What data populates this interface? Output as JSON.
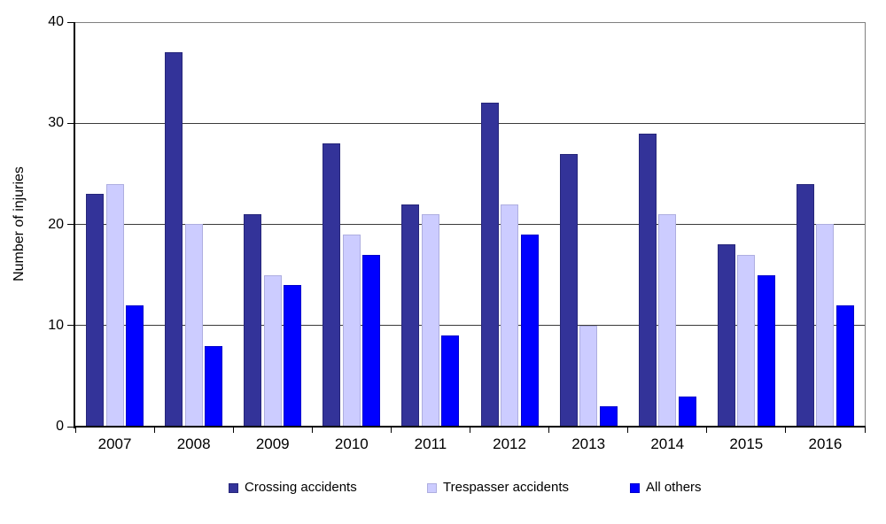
{
  "chart_data": {
    "type": "bar",
    "title": "",
    "ylabel": "Number of injuries",
    "xlabel": "",
    "categories": [
      "2007",
      "2008",
      "2009",
      "2010",
      "2011",
      "2012",
      "2013",
      "2014",
      "2015",
      "2016"
    ],
    "series": [
      {
        "name": "Crossing accidents",
        "color": "#333399",
        "border_color": "#26267A",
        "values": [
          23,
          37,
          21,
          28,
          22,
          32,
          27,
          29,
          18,
          24
        ]
      },
      {
        "name": "Trespasser accidents",
        "color": "#CCCCFF",
        "border_color": "#AEAEE0",
        "values": [
          24,
          20,
          15,
          19,
          21,
          22,
          10,
          21,
          17,
          20
        ]
      },
      {
        "name": "All others",
        "color": "#0000FF",
        "border_color": "#0000CC",
        "values": [
          12,
          8,
          14,
          17,
          9,
          19,
          2,
          3,
          15,
          12
        ]
      }
    ],
    "ylim": [
      0,
      40
    ],
    "yticks": [
      0,
      10,
      20,
      30,
      40
    ],
    "grid": "horizontal",
    "legend_position": "bottom",
    "colors": {
      "axis": "#000000",
      "gridline": "#3A3A3A",
      "plot_border": "#808080",
      "background": "#FFFFFF",
      "text": "#000000"
    }
  }
}
